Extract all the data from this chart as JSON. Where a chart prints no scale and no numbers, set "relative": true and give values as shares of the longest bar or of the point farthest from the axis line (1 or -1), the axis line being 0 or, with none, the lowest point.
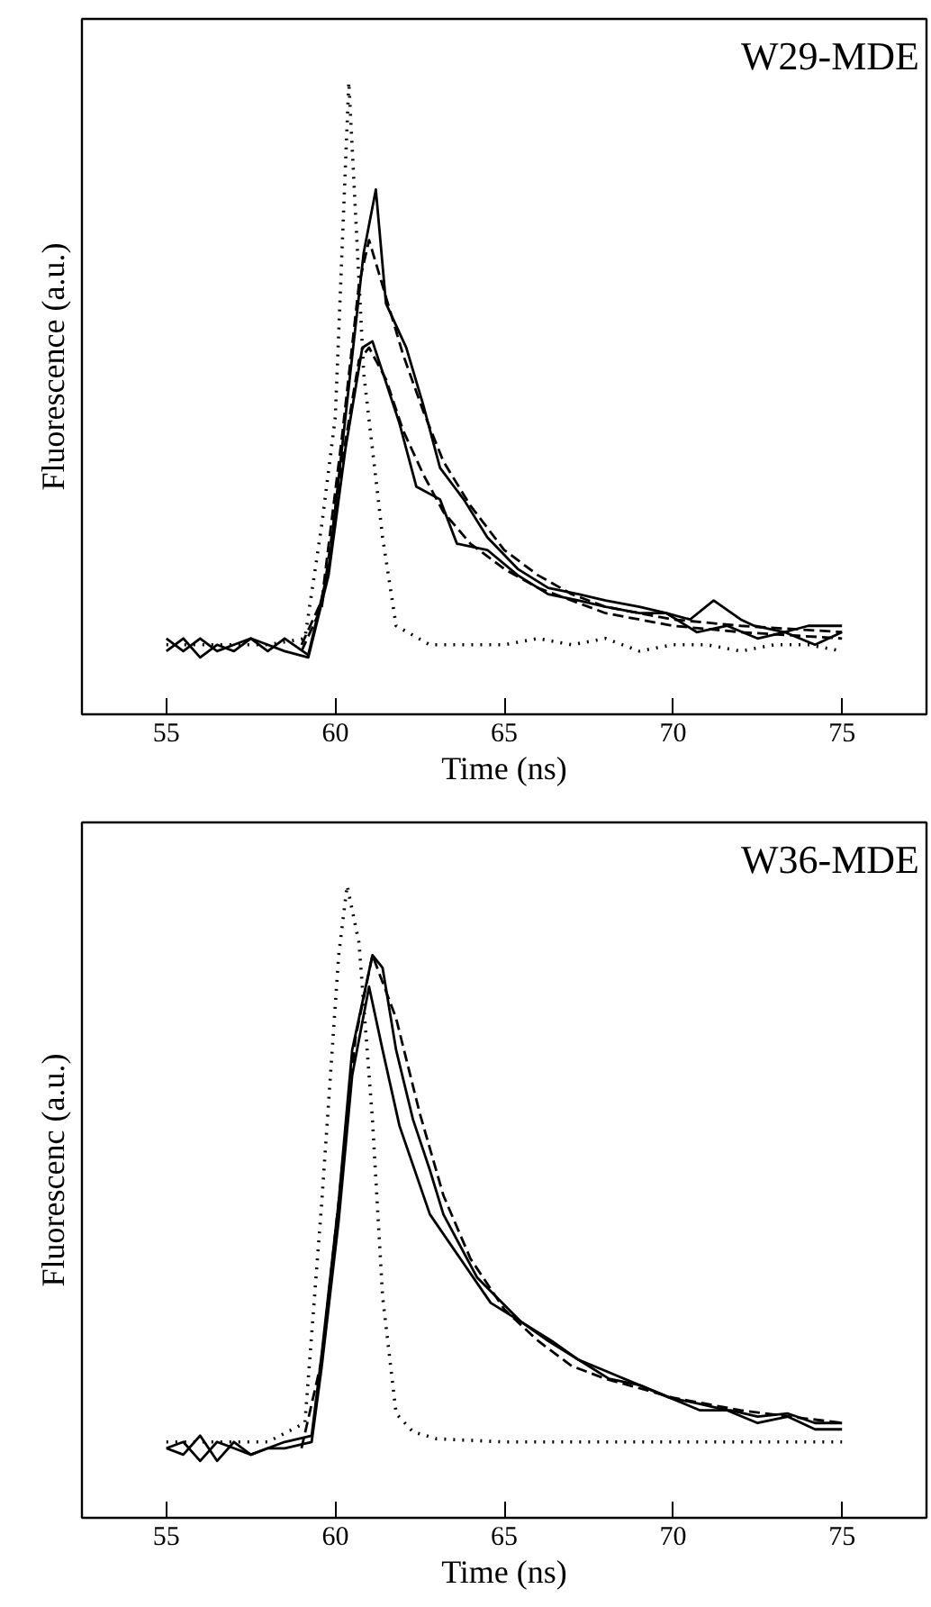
{
  "chart_data": [
    {
      "type": "line",
      "title": "W29-MDE",
      "xlabel": "Time (ns)",
      "ylabel": "Fluorescence (a.u.)",
      "relative": true,
      "xlim": [
        52.5,
        77.5
      ],
      "xticks": [
        55,
        60,
        65,
        70,
        75
      ],
      "grid": false,
      "marker": "none",
      "series": [
        {
          "color": "#000000",
          "line_style": "dotted",
          "x": [
            55,
            56,
            57,
            58,
            59.1,
            59.6,
            60.0,
            60.4,
            60.84,
            61.4,
            61.8,
            62.8,
            64,
            65,
            66,
            67,
            68,
            69,
            70,
            71,
            72,
            73,
            74,
            75
          ],
          "values": [
            0.11,
            0.11,
            0.11,
            0.11,
            0.12,
            0.3,
            0.47,
            1.0,
            0.54,
            0.28,
            0.14,
            0.11,
            0.11,
            0.11,
            0.12,
            0.11,
            0.12,
            0.1,
            0.11,
            0.11,
            0.1,
            0.11,
            0.11,
            0.1
          ]
        },
        {
          "color": "#000000",
          "line_style": "solid",
          "x": [
            55,
            55.5,
            56,
            56.5,
            57,
            57.5,
            58,
            58.5,
            59.2,
            59.8,
            60.3,
            60.84,
            61.2,
            61.5,
            62.1,
            62.6,
            63.1,
            63.8,
            64.5,
            65.4,
            66.3,
            67.2,
            68,
            69,
            69.8,
            70.5,
            71.2,
            72,
            72.4,
            73.3,
            74,
            75
          ],
          "values": [
            0.12,
            0.1,
            0.12,
            0.1,
            0.11,
            0.12,
            0.1,
            0.12,
            0.094,
            0.23,
            0.47,
            0.73,
            0.83,
            0.65,
            0.58,
            0.49,
            0.39,
            0.34,
            0.28,
            0.23,
            0.2,
            0.19,
            0.18,
            0.17,
            0.16,
            0.15,
            0.18,
            0.15,
            0.14,
            0.13,
            0.14,
            0.14
          ]
        },
        {
          "color": "#000000",
          "line_style": "solid",
          "x": [
            55,
            55.5,
            56,
            56.5,
            57,
            57.5,
            58,
            58.5,
            59.2,
            59.8,
            60.3,
            60.8,
            61.1,
            61.9,
            62.4,
            63.1,
            63.6,
            64.5,
            65.4,
            66.3,
            67.2,
            68,
            69,
            69.8,
            70.7,
            71.6,
            72.5,
            73.3,
            74.2,
            75
          ],
          "values": [
            0.1,
            0.12,
            0.09,
            0.11,
            0.1,
            0.12,
            0.11,
            0.1,
            0.09,
            0.22,
            0.42,
            0.58,
            0.59,
            0.46,
            0.36,
            0.34,
            0.27,
            0.26,
            0.22,
            0.19,
            0.18,
            0.17,
            0.16,
            0.16,
            0.13,
            0.14,
            0.12,
            0.13,
            0.11,
            0.13
          ]
        },
        {
          "color": "#000000",
          "line_style": "dashed",
          "x": [
            59.0,
            59.6,
            60.2,
            60.7,
            61.0,
            61.5,
            62.0,
            62.6,
            63.2,
            64,
            65,
            66,
            67,
            68,
            70,
            72,
            75
          ],
          "values": [
            0.11,
            0.18,
            0.44,
            0.68,
            0.75,
            0.66,
            0.57,
            0.48,
            0.4,
            0.33,
            0.26,
            0.22,
            0.19,
            0.17,
            0.15,
            0.14,
            0.13
          ]
        },
        {
          "color": "#000000",
          "line_style": "dashed",
          "x": [
            59.0,
            59.6,
            60.2,
            60.7,
            61.0,
            61.5,
            62.0,
            62.6,
            63.2,
            64,
            65,
            66,
            67,
            68,
            70,
            72,
            75
          ],
          "values": [
            0.1,
            0.17,
            0.4,
            0.56,
            0.58,
            0.53,
            0.45,
            0.38,
            0.32,
            0.27,
            0.23,
            0.2,
            0.18,
            0.16,
            0.14,
            0.13,
            0.12
          ]
        }
      ]
    },
    {
      "type": "line",
      "title": "W36-MDE",
      "xlabel": "Time (ns)",
      "ylabel": "Fluorescenc (a.u.)",
      "relative": true,
      "xlim": [
        52.5,
        77.5
      ],
      "xticks": [
        55,
        60,
        65,
        70,
        75
      ],
      "grid": false,
      "marker": "none",
      "series": [
        {
          "color": "#000000",
          "line_style": "dotted",
          "x": [
            55,
            56,
            57,
            58,
            59.1,
            59.6,
            60.1,
            60.35,
            60.7,
            61.1,
            61.4,
            61.8,
            62.3,
            63,
            65,
            67,
            69,
            71,
            73,
            75
          ],
          "values": [
            0.12,
            0.12,
            0.12,
            0.12,
            0.15,
            0.5,
            0.89,
            1.0,
            0.91,
            0.63,
            0.35,
            0.165,
            0.136,
            0.125,
            0.12,
            0.12,
            0.12,
            0.12,
            0.12,
            0.12
          ]
        },
        {
          "color": "#000000",
          "line_style": "solid",
          "x": [
            55,
            55.5,
            56,
            56.5,
            57,
            57.5,
            58,
            58.5,
            59.3,
            59.6,
            60.1,
            60.5,
            61.1,
            61.4,
            61.8,
            62.3,
            62.8,
            63.2,
            64.2,
            65.5,
            66.4,
            67.2,
            68.1,
            69,
            69.9,
            70.8,
            71.7,
            72.5,
            73.4,
            74.2,
            75
          ],
          "values": [
            0.11,
            0.1,
            0.13,
            0.09,
            0.12,
            0.1,
            0.11,
            0.12,
            0.13,
            0.26,
            0.5,
            0.74,
            0.89,
            0.87,
            0.74,
            0.63,
            0.55,
            0.48,
            0.38,
            0.31,
            0.28,
            0.25,
            0.22,
            0.21,
            0.19,
            0.17,
            0.17,
            0.16,
            0.165,
            0.15,
            0.15
          ]
        },
        {
          "color": "#000000",
          "line_style": "solid",
          "x": [
            55,
            55.5,
            56,
            56.5,
            57,
            57.5,
            58,
            58.5,
            59.3,
            59.6,
            60.1,
            60.5,
            61.0,
            61.4,
            61.9,
            62.8,
            63.7,
            64.6,
            65.5,
            66.3,
            67.2,
            68.1,
            69.0,
            69.9,
            70.8,
            71.6,
            72.5,
            73.4,
            74.2,
            75
          ],
          "values": [
            0.11,
            0.12,
            0.09,
            0.12,
            0.11,
            0.1,
            0.11,
            0.11,
            0.12,
            0.24,
            0.47,
            0.7,
            0.84,
            0.74,
            0.62,
            0.48,
            0.41,
            0.34,
            0.31,
            0.28,
            0.25,
            0.23,
            0.21,
            0.19,
            0.18,
            0.17,
            0.15,
            0.16,
            0.14,
            0.14
          ]
        },
        {
          "color": "#000000",
          "line_style": "dashed",
          "x": [
            59.0,
            59.6,
            60.1,
            60.6,
            61.1,
            61.8,
            62.5,
            63.2,
            64,
            65,
            66,
            67,
            68,
            70,
            72,
            75
          ],
          "values": [
            0.11,
            0.25,
            0.5,
            0.76,
            0.89,
            0.79,
            0.64,
            0.51,
            0.41,
            0.33,
            0.28,
            0.24,
            0.22,
            0.19,
            0.17,
            0.15
          ]
        }
      ]
    }
  ]
}
